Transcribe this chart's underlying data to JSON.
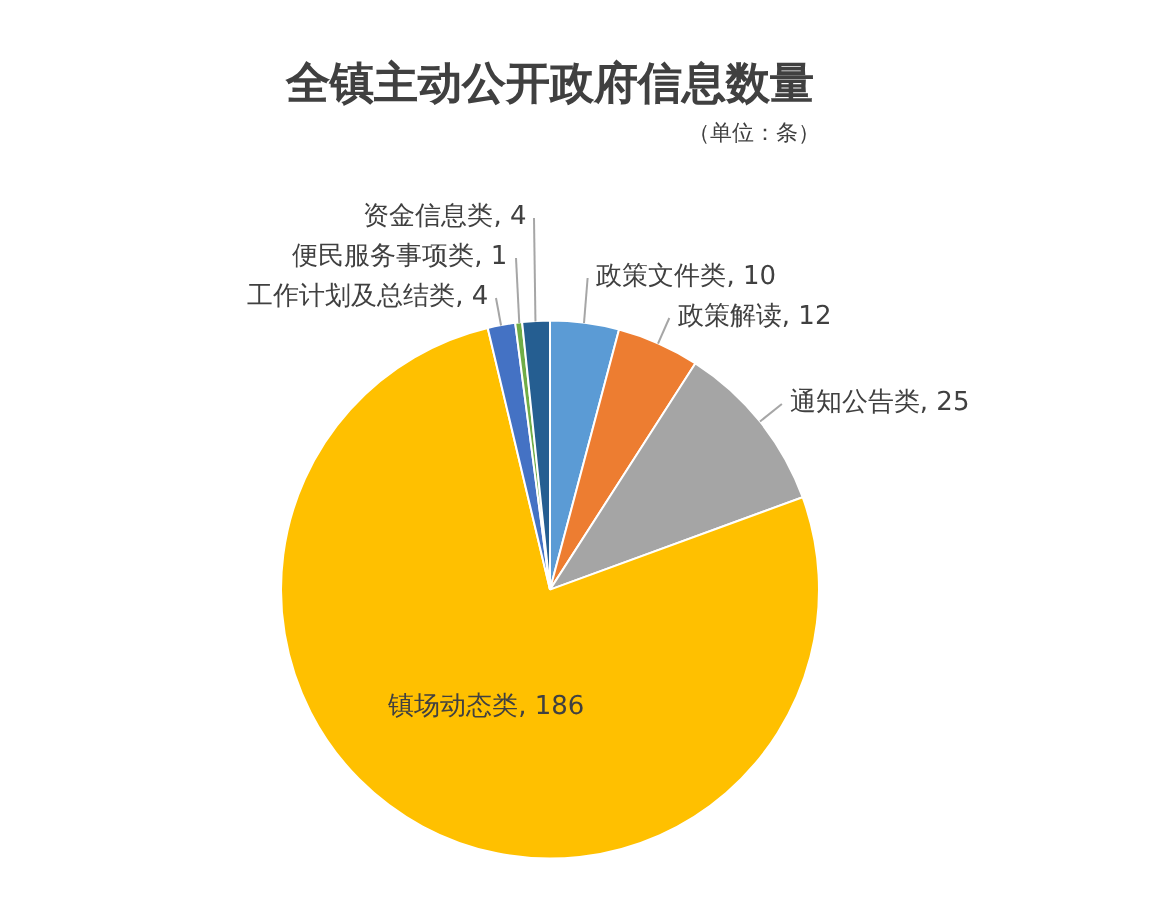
{
  "chart_data": {
    "type": "pie",
    "title": "全镇主动公开政府信息数量",
    "subtitle": "（单位：条）",
    "categories": [
      "政策文件类",
      "政策解读",
      "通知公告类",
      "镇场动态类",
      "工作计划及总结类",
      "便民服务事项类",
      "资金信息类"
    ],
    "values": [
      10,
      12,
      25,
      186,
      4,
      1,
      4
    ],
    "value_labels": [
      ", 10",
      ", 12",
      ", 25",
      ", 186",
      ", 4",
      ", 1",
      ", 4"
    ],
    "colors": [
      "#5b9bd5",
      "#ed7d31",
      "#a5a5a5",
      "#ffc000",
      "#4472c4",
      "#70ad47",
      "#255e91"
    ],
    "legend": false
  }
}
